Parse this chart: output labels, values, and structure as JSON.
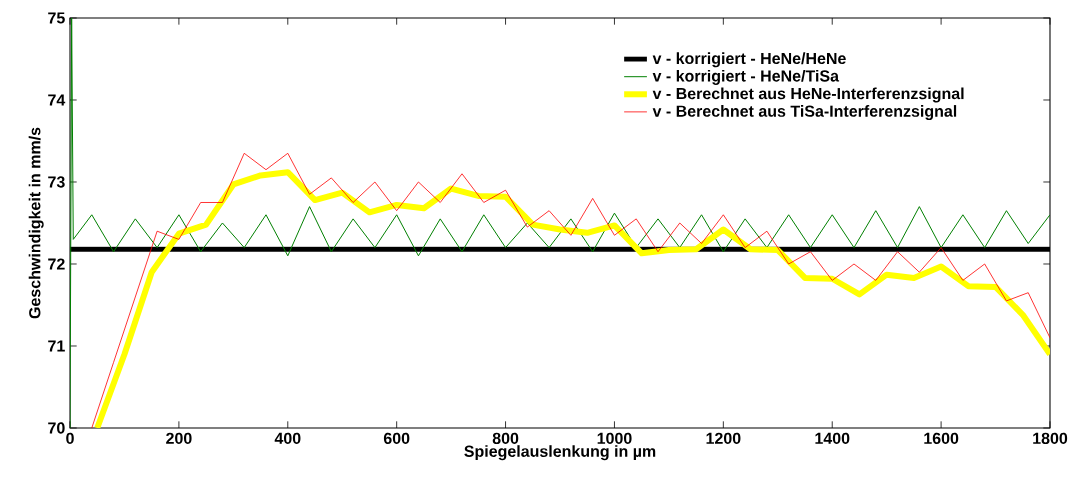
{
  "chart_data": {
    "type": "line",
    "xlabel": "Spiegelauslenkung in µm",
    "ylabel": "Geschwindigkeit in mm/s",
    "xlim": [
      0,
      1800
    ],
    "ylim": [
      70,
      75
    ],
    "xticks": [
      0,
      200,
      400,
      600,
      800,
      1000,
      1200,
      1400,
      1600,
      1800
    ],
    "yticks": [
      70,
      71,
      72,
      73,
      74,
      75
    ],
    "grid": false,
    "legend": "top right",
    "marker": "none",
    "series": [
      {
        "name": "v - korrigiert - HeNe/HeNe",
        "color": "#000000",
        "x": [
          0,
          1800
        ],
        "values": [
          72.18,
          72.18
        ]
      },
      {
        "name": "v - korrigiert - HeNe/TiSa",
        "color": "#007f00",
        "x": [
          0,
          3,
          6,
          40,
          80,
          120,
          160,
          200,
          240,
          280,
          320,
          360,
          400,
          440,
          480,
          520,
          560,
          600,
          640,
          680,
          720,
          760,
          800,
          840,
          880,
          920,
          960,
          1000,
          1040,
          1080,
          1120,
          1160,
          1200,
          1240,
          1280,
          1320,
          1360,
          1400,
          1440,
          1480,
          1520,
          1560,
          1600,
          1640,
          1680,
          1720,
          1760,
          1800
        ],
        "values": [
          70.0,
          75.0,
          72.3,
          72.6,
          72.15,
          72.55,
          72.2,
          72.6,
          72.15,
          72.5,
          72.2,
          72.6,
          72.1,
          72.7,
          72.15,
          72.55,
          72.2,
          72.6,
          72.1,
          72.55,
          72.15,
          72.6,
          72.2,
          72.5,
          72.2,
          72.55,
          72.15,
          72.62,
          72.2,
          72.55,
          72.2,
          72.6,
          72.15,
          72.55,
          72.2,
          72.6,
          72.2,
          72.6,
          72.2,
          72.65,
          72.2,
          72.7,
          72.2,
          72.6,
          72.2,
          72.65,
          72.25,
          72.6
        ]
      },
      {
        "name": "v - Berechnet aus HeNe-Interferenzsignal",
        "color": "#ffff00",
        "x": [
          50,
          100,
          150,
          200,
          250,
          300,
          350,
          400,
          450,
          500,
          550,
          600,
          650,
          700,
          750,
          800,
          850,
          900,
          950,
          1000,
          1050,
          1100,
          1150,
          1200,
          1250,
          1300,
          1350,
          1400,
          1450,
          1500,
          1550,
          1600,
          1650,
          1700,
          1750,
          1800
        ],
        "values": [
          70.0,
          70.9,
          71.9,
          72.37,
          72.48,
          72.97,
          73.08,
          73.12,
          72.78,
          72.87,
          72.63,
          72.72,
          72.68,
          72.92,
          72.83,
          72.82,
          72.48,
          72.42,
          72.38,
          72.47,
          72.13,
          72.17,
          72.18,
          72.42,
          72.18,
          72.17,
          71.83,
          71.82,
          71.63,
          71.87,
          71.83,
          71.97,
          71.73,
          71.72,
          71.38,
          70.9
        ]
      },
      {
        "name": "v - Berechnet aus TiSa-Interferenzsignal",
        "color": "#ff0000",
        "x": [
          40,
          80,
          120,
          160,
          200,
          240,
          280,
          320,
          360,
          400,
          440,
          480,
          520,
          560,
          600,
          640,
          680,
          720,
          760,
          800,
          840,
          880,
          920,
          960,
          1000,
          1040,
          1080,
          1120,
          1160,
          1200,
          1240,
          1280,
          1320,
          1360,
          1400,
          1440,
          1480,
          1520,
          1560,
          1600,
          1640,
          1680,
          1720,
          1760,
          1800
        ],
        "values": [
          70.0,
          70.8,
          71.6,
          72.4,
          72.3,
          72.75,
          72.75,
          73.35,
          73.15,
          73.35,
          72.85,
          73.05,
          72.75,
          73.0,
          72.65,
          73.0,
          72.75,
          73.1,
          72.75,
          72.9,
          72.45,
          72.65,
          72.35,
          72.8,
          72.35,
          72.55,
          72.15,
          72.5,
          72.25,
          72.6,
          72.2,
          72.4,
          72.0,
          72.15,
          71.8,
          72.0,
          71.8,
          72.15,
          71.9,
          72.2,
          71.8,
          72.0,
          71.55,
          71.65,
          71.1
        ]
      }
    ]
  }
}
